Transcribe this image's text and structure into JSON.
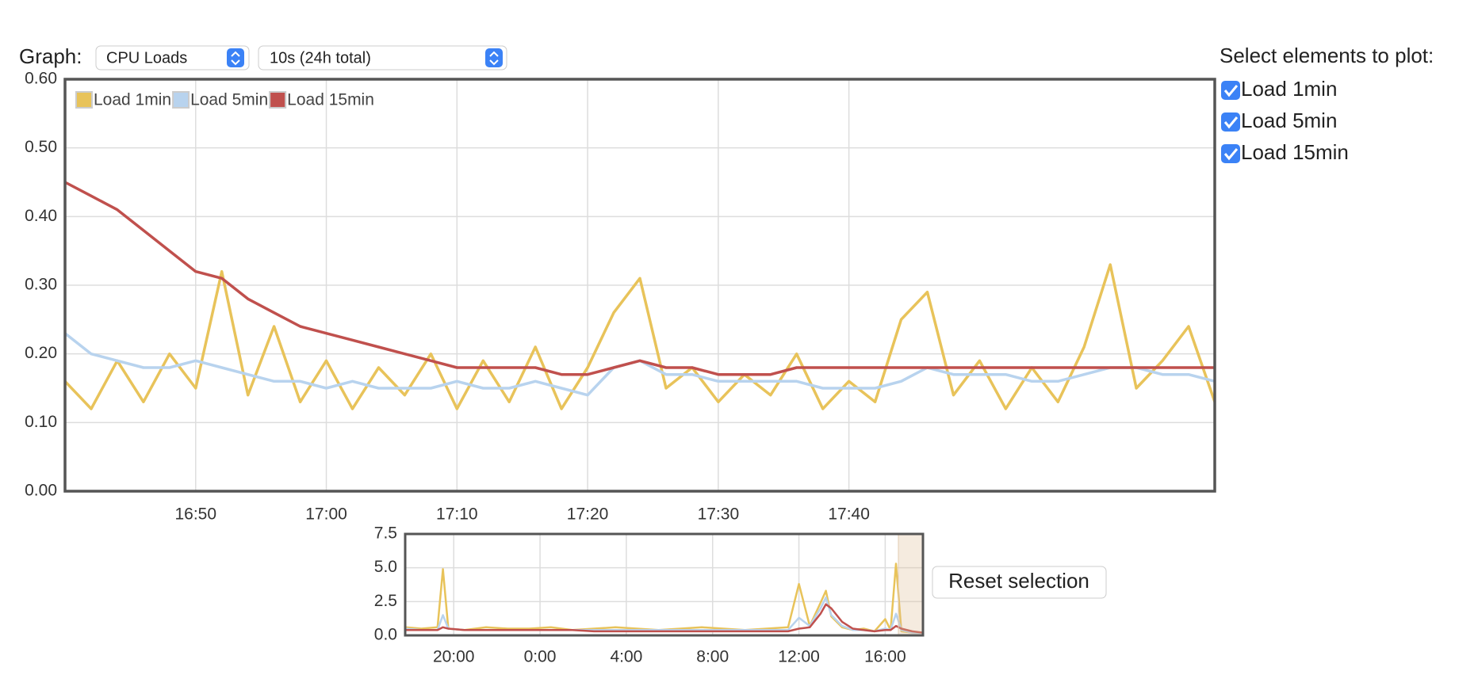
{
  "ui": {
    "graph_label": "Graph:",
    "graph_select": "CPU Loads",
    "interval_select": "10s (24h total)",
    "plot_panel_title": "Select elements to plot:",
    "checkboxes": [
      "Load 1min",
      "Load 5min",
      "Load 15min"
    ],
    "reset_button": "Reset selection"
  },
  "chart_data": [
    {
      "type": "line",
      "legend": "top-left",
      "grid": true,
      "x": [
        1000,
        1002,
        1004,
        1006,
        1008,
        1010,
        1012,
        1014,
        1016,
        1018,
        1020,
        1022,
        1024,
        1026,
        1028,
        1030,
        1032,
        1034,
        1036,
        1038,
        1040,
        1042,
        1044,
        1046,
        1048,
        1050,
        1052,
        1054,
        1056,
        1058,
        1060,
        1062,
        1064,
        1066,
        1068,
        1070,
        1072,
        1074,
        1076,
        1078,
        1080,
        1082,
        1084,
        1086,
        1088
      ],
      "xlim": [
        1000,
        1088
      ],
      "xticks": [
        {
          "value": 1010,
          "label": "16:50"
        },
        {
          "value": 1020,
          "label": "17:00"
        },
        {
          "value": 1030,
          "label": "17:10"
        },
        {
          "value": 1040,
          "label": "17:20"
        },
        {
          "value": 1050,
          "label": "17:30"
        },
        {
          "value": 1060,
          "label": "17:40"
        }
      ],
      "ylim": [
        0,
        0.6
      ],
      "yticks": [
        {
          "value": 0,
          "label": "0.00"
        },
        {
          "value": 0.1,
          "label": "0.10"
        },
        {
          "value": 0.2,
          "label": "0.20"
        },
        {
          "value": 0.3,
          "label": "0.30"
        },
        {
          "value": 0.4,
          "label": "0.40"
        },
        {
          "value": 0.5,
          "label": "0.50"
        },
        {
          "value": 0.6,
          "label": "0.60"
        }
      ],
      "series": [
        {
          "name": "Load 1min",
          "color": "#e8c35a",
          "values": [
            0.16,
            0.12,
            0.19,
            0.13,
            0.2,
            0.15,
            0.32,
            0.14,
            0.24,
            0.13,
            0.19,
            0.12,
            0.18,
            0.14,
            0.2,
            0.12,
            0.19,
            0.13,
            0.21,
            0.12,
            0.18,
            0.26,
            0.31,
            0.15,
            0.18,
            0.13,
            0.17,
            0.14,
            0.2,
            0.12,
            0.16,
            0.13,
            0.25,
            0.29,
            0.14,
            0.19,
            0.12,
            0.18,
            0.13,
            0.21,
            0.33,
            0.15,
            0.19,
            0.24,
            0.13
          ]
        },
        {
          "name": "Load 5min",
          "color": "#b8d3ee",
          "values": [
            0.23,
            0.2,
            0.19,
            0.18,
            0.18,
            0.19,
            0.18,
            0.17,
            0.16,
            0.16,
            0.15,
            0.16,
            0.15,
            0.15,
            0.15,
            0.16,
            0.15,
            0.15,
            0.16,
            0.15,
            0.14,
            0.18,
            0.19,
            0.17,
            0.17,
            0.16,
            0.16,
            0.16,
            0.16,
            0.15,
            0.15,
            0.15,
            0.16,
            0.18,
            0.17,
            0.17,
            0.17,
            0.16,
            0.16,
            0.17,
            0.18,
            0.18,
            0.17,
            0.17,
            0.16
          ]
        },
        {
          "name": "Load 15min",
          "color": "#c0504d",
          "values": [
            0.45,
            0.43,
            0.41,
            0.38,
            0.35,
            0.32,
            0.31,
            0.28,
            0.26,
            0.24,
            0.23,
            0.22,
            0.21,
            0.2,
            0.19,
            0.18,
            0.18,
            0.18,
            0.18,
            0.17,
            0.17,
            0.18,
            0.19,
            0.18,
            0.18,
            0.17,
            0.17,
            0.17,
            0.18,
            0.18,
            0.18,
            0.18,
            0.18,
            0.18,
            0.18,
            0.18,
            0.18,
            0.18,
            0.18,
            0.18,
            0.18,
            0.18,
            0.18,
            0.18,
            0.18
          ]
        }
      ]
    },
    {
      "type": "line",
      "grid": true,
      "x": [
        17.75,
        18.5,
        19.25,
        19.5,
        19.75,
        20.5,
        21.5,
        22.5,
        23.5,
        24.5,
        25.5,
        26.5,
        27.5,
        28.5,
        29.5,
        30.5,
        31.5,
        32.5,
        33.5,
        34.5,
        35.5,
        36,
        36.5,
        37,
        37.25,
        37.5,
        38,
        38.5,
        39,
        39.5,
        40,
        40.25,
        40.5,
        40.75,
        41.25,
        41.75
      ],
      "xlim": [
        17.75,
        41.75
      ],
      "xticks": [
        {
          "value": 20,
          "label": "20:00"
        },
        {
          "value": 24,
          "label": "0:00"
        },
        {
          "value": 28,
          "label": "4:00"
        },
        {
          "value": 32,
          "label": "8:00"
        },
        {
          "value": 36,
          "label": "12:00"
        },
        {
          "value": 40,
          "label": "16:00"
        }
      ],
      "ylim": [
        0,
        7.5
      ],
      "yticks": [
        {
          "value": 0,
          "label": "0.0"
        },
        2.5,
        {
          "value": 5,
          "label": "5.0"
        },
        7.5
      ],
      "series": [
        {
          "color": "#e8c35a",
          "values": [
            0.6,
            0.5,
            0.6,
            4.9,
            0.5,
            0.4,
            0.6,
            0.5,
            0.5,
            0.6,
            0.4,
            0.5,
            0.6,
            0.5,
            0.4,
            0.5,
            0.6,
            0.5,
            0.4,
            0.5,
            0.6,
            3.8,
            0.7,
            2.4,
            3.3,
            1.4,
            0.6,
            0.4,
            0.5,
            0.3,
            1.2,
            0.4,
            5.3,
            0.3,
            0.2,
            0.2
          ]
        },
        {
          "color": "#b8d3ee",
          "values": [
            0.5,
            0.4,
            0.4,
            1.5,
            0.5,
            0.4,
            0.4,
            0.4,
            0.4,
            0.4,
            0.4,
            0.4,
            0.4,
            0.4,
            0.4,
            0.4,
            0.4,
            0.4,
            0.4,
            0.4,
            0.4,
            1.3,
            0.7,
            2.0,
            2.8,
            1.5,
            0.7,
            0.4,
            0.4,
            0.3,
            0.5,
            0.4,
            1.6,
            0.4,
            0.2,
            0.2
          ]
        },
        {
          "color": "#c0504d",
          "values": [
            0.4,
            0.4,
            0.4,
            0.6,
            0.5,
            0.4,
            0.4,
            0.4,
            0.4,
            0.4,
            0.4,
            0.3,
            0.3,
            0.3,
            0.3,
            0.3,
            0.3,
            0.3,
            0.3,
            0.3,
            0.3,
            0.5,
            0.6,
            1.6,
            2.3,
            2.0,
            1.0,
            0.5,
            0.4,
            0.3,
            0.4,
            0.4,
            0.7,
            0.5,
            0.3,
            0.2
          ]
        }
      ]
    }
  ]
}
